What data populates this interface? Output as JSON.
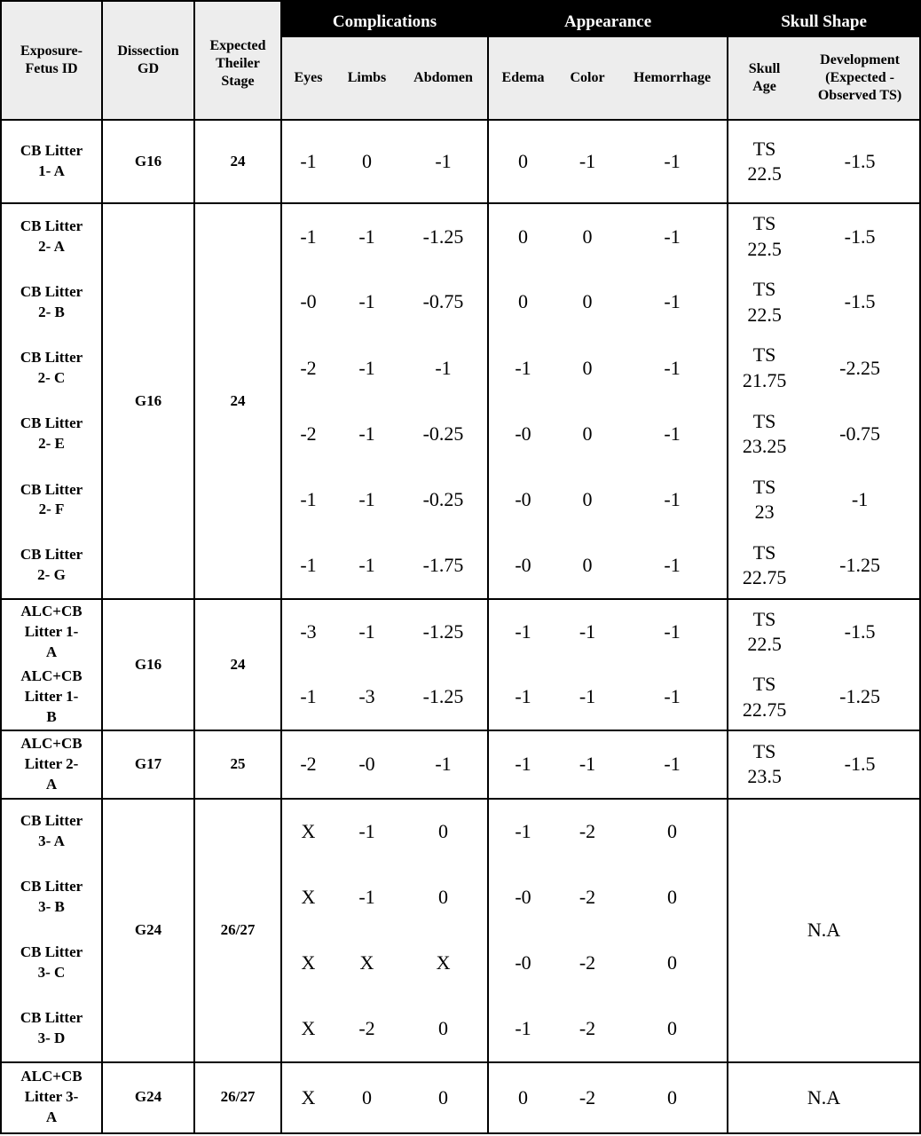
{
  "headers": {
    "groups": {
      "complications": "Complications",
      "appearance": "Appearance",
      "skull_shape": "Skull Shape"
    },
    "exposure": [
      "Exposure-",
      "Fetus ID"
    ],
    "dissection": [
      "Dissection",
      "GD"
    ],
    "theiler": [
      "Expected",
      "Theiler",
      "Stage"
    ],
    "eyes": "Eyes",
    "limbs": "Limbs",
    "abdomen": "Abdomen",
    "edema": "Edema",
    "color": "Color",
    "hemorrhage": "Hemorrhage",
    "skull_age": [
      "Skull",
      "Age"
    ],
    "development": [
      "Development",
      "(Expected -",
      "Observed TS)"
    ]
  },
  "groups": [
    {
      "gd": "G16",
      "stage": "24",
      "rows": [
        {
          "id": [
            "CB Litter",
            "1- A"
          ],
          "vals": [
            "-1",
            "0",
            "-1",
            "0",
            "-1",
            "-1"
          ],
          "skull": [
            "TS",
            "22.5"
          ],
          "dev": "-1.5"
        }
      ]
    },
    {
      "gd": "G16",
      "stage": "24",
      "rows": [
        {
          "id": [
            "CB Litter",
            "2- A"
          ],
          "vals": [
            "-1",
            "-1",
            "-1.25",
            "0",
            "0",
            "-1"
          ],
          "skull": [
            "TS",
            "22.5"
          ],
          "dev": "-1.5"
        },
        {
          "id": [
            "CB Litter",
            "2- B"
          ],
          "vals": [
            "-0",
            "-1",
            "-0.75",
            "0",
            "0",
            "-1"
          ],
          "skull": [
            "TS",
            "22.5"
          ],
          "dev": "-1.5"
        },
        {
          "id": [
            "CB Litter",
            "2- C"
          ],
          "vals": [
            "-2",
            "-1",
            "-1",
            "-1",
            "0",
            "-1"
          ],
          "skull": [
            "TS",
            "21.75"
          ],
          "dev": "-2.25"
        },
        {
          "id": [
            "CB Litter",
            "2- E"
          ],
          "vals": [
            "-2",
            "-1",
            "-0.25",
            "-0",
            "0",
            "-1"
          ],
          "skull": [
            "TS",
            "23.25"
          ],
          "dev": "-0.75"
        },
        {
          "id": [
            "CB Litter",
            "2- F"
          ],
          "vals": [
            "-1",
            "-1",
            "-0.25",
            "-0",
            "0",
            "-1"
          ],
          "skull": [
            "TS",
            "23"
          ],
          "dev": "-1"
        },
        {
          "id": [
            "CB Litter",
            "2- G"
          ],
          "vals": [
            "-1",
            "-1",
            "-1.75",
            "-0",
            "0",
            "-1"
          ],
          "skull": [
            "TS",
            "22.75"
          ],
          "dev": "-1.25"
        }
      ]
    },
    {
      "gd": "G16",
      "stage": "24",
      "rows": [
        {
          "id": [
            "ALC+CB",
            "Litter 1-",
            "A"
          ],
          "vals": [
            "-3",
            "-1",
            "-1.25",
            "-1",
            "-1",
            "-1"
          ],
          "skull": [
            "TS",
            "22.5"
          ],
          "dev": "-1.5"
        },
        {
          "id": [
            "ALC+CB",
            "Litter 1-",
            "B"
          ],
          "vals": [
            "-1",
            "-3",
            "-1.25",
            "-1",
            "-1",
            "-1"
          ],
          "skull": [
            "TS",
            "22.75"
          ],
          "dev": "-1.25"
        }
      ]
    },
    {
      "gd": "G17",
      "stage": "25",
      "rows": [
        {
          "id": [
            "ALC+CB",
            "Litter 2-",
            "A"
          ],
          "vals": [
            "-2",
            "-0",
            "-1",
            "-1",
            "-1",
            "-1"
          ],
          "skull": [
            "TS",
            "23.5"
          ],
          "dev": "-1.5"
        }
      ]
    },
    {
      "gd": "G24",
      "stage": "26/27",
      "na": "N.A",
      "rows": [
        {
          "id": [
            "CB Litter",
            "3- A"
          ],
          "vals": [
            "X",
            "-1",
            "0",
            "-1",
            "-2",
            "0"
          ]
        },
        {
          "id": [
            "CB Litter",
            "3- B"
          ],
          "vals": [
            "X",
            "-1",
            "0",
            "-0",
            "-2",
            "0"
          ]
        },
        {
          "id": [
            "CB Litter",
            "3- C"
          ],
          "vals": [
            "X",
            "X",
            "X",
            "-0",
            "-2",
            "0"
          ]
        },
        {
          "id": [
            "CB Litter",
            "3- D"
          ],
          "vals": [
            "X",
            "-2",
            "0",
            "-1",
            "-2",
            "0"
          ]
        }
      ]
    },
    {
      "gd": "G24",
      "stage": "26/27",
      "na": "N.A",
      "rows": [
        {
          "id": [
            "ALC+CB",
            "Litter 3-",
            "A"
          ],
          "vals": [
            "X",
            "0",
            "0",
            "0",
            "-2",
            "0"
          ]
        }
      ]
    }
  ]
}
